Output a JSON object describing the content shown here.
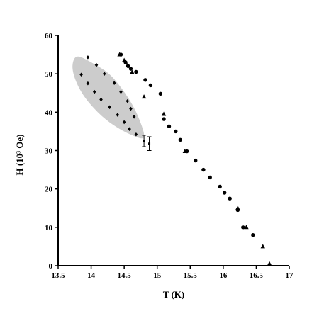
{
  "chart_data": {
    "type": "scatter",
    "title": "",
    "xlabel": "T (K)",
    "ylabel": "H (10³ Oe)",
    "xlim": [
      13.5,
      17
    ],
    "ylim": [
      0,
      60
    ],
    "xticks": [
      13.5,
      14,
      14.5,
      15,
      15.5,
      16,
      16.5,
      17
    ],
    "yticks": [
      0,
      10,
      20,
      30,
      40,
      50,
      60
    ],
    "x_tick_labels": [
      "13.5",
      "14",
      "14.5",
      "15",
      "15.5",
      "16",
      "16.5",
      "17"
    ],
    "y_tick_labels": [
      "0",
      "10",
      "20",
      "30",
      "40",
      "50",
      "60"
    ],
    "grid": false,
    "legend": "none",
    "shaded_region": {
      "color": "#cccccc",
      "boundary": [
        [
          13.8,
          54.5
        ],
        [
          14.05,
          52.5
        ],
        [
          14.3,
          49.5
        ],
        [
          14.55,
          44
        ],
        [
          14.72,
          38.5
        ],
        [
          14.8,
          33.5
        ],
        [
          14.62,
          34
        ],
        [
          14.35,
          36.5
        ],
        [
          14.1,
          40
        ],
        [
          13.88,
          44.5
        ],
        [
          13.75,
          49
        ],
        [
          13.72,
          52.5
        ]
      ]
    },
    "series": [
      {
        "marker": "diamond",
        "color": "#000000",
        "points": [
          [
            13.95,
            54.3
          ],
          [
            14.08,
            52.3
          ],
          [
            14.2,
            50
          ],
          [
            14.35,
            47.6
          ],
          [
            14.45,
            45.3
          ],
          [
            14.55,
            42.9
          ],
          [
            14.6,
            40.9
          ],
          [
            14.65,
            38.8
          ],
          [
            13.85,
            49.8
          ],
          [
            13.95,
            47.5
          ],
          [
            14.05,
            45.3
          ],
          [
            14.15,
            43.3
          ],
          [
            14.28,
            41.3
          ],
          [
            14.4,
            39.3
          ],
          [
            14.5,
            37.4
          ],
          [
            14.58,
            35.6
          ],
          [
            14.68,
            34.2
          ]
        ]
      },
      {
        "marker": "circle",
        "color": "#000000",
        "points": [
          [
            14.45,
            55
          ],
          [
            14.52,
            53
          ],
          [
            14.56,
            52
          ],
          [
            14.6,
            51.3
          ],
          [
            14.68,
            50.5
          ],
          [
            14.82,
            48.4
          ],
          [
            14.9,
            47
          ],
          [
            15.05,
            44.8
          ],
          [
            15.1,
            38.2
          ],
          [
            15.18,
            36.3
          ],
          [
            15.28,
            35
          ],
          [
            15.35,
            32.8
          ],
          [
            15.45,
            29.8
          ],
          [
            15.58,
            27.4
          ],
          [
            15.7,
            25
          ],
          [
            15.8,
            23
          ],
          [
            15.95,
            20.6
          ],
          [
            16.02,
            19
          ],
          [
            16.1,
            17.5
          ],
          [
            16.22,
            14.5
          ],
          [
            16.3,
            10
          ],
          [
            16.45,
            8
          ]
        ]
      },
      {
        "marker": "triangle",
        "color": "#000000",
        "points": [
          [
            14.43,
            55
          ],
          [
            14.5,
            53.5
          ],
          [
            14.55,
            52.2
          ],
          [
            14.62,
            50.4
          ],
          [
            14.8,
            44
          ],
          [
            15.1,
            39.5
          ],
          [
            15.42,
            29.8
          ],
          [
            16.22,
            15
          ],
          [
            16.35,
            10
          ],
          [
            16.6,
            5
          ],
          [
            16.7,
            0.5
          ]
        ]
      }
    ],
    "error_bar_points": [
      {
        "x": 14.8,
        "y": 32.5,
        "yerr": 1.5
      },
      {
        "x": 14.88,
        "y": 31.8,
        "yerr": 1.8
      }
    ]
  }
}
